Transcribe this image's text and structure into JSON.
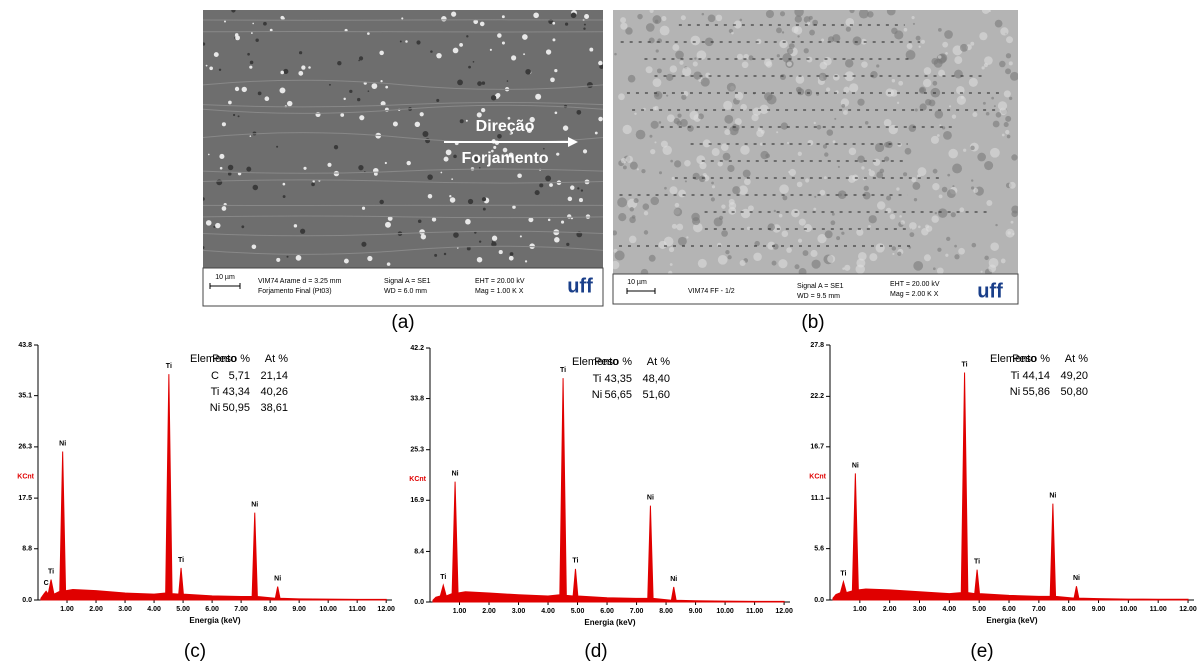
{
  "sem_images": [
    {
      "label": "(a)",
      "arrow_text": [
        "Direção",
        "Forjamento"
      ],
      "scale": "10 µm",
      "info": [
        "VIM74  Arame d = 3.25 mm",
        "Forjamento Final (Pt03)",
        "Signal A = SE1",
        "WD = 6.0 mm",
        "EHT = 20.00 kV",
        "Mag =  1.00 K X"
      ],
      "logo": "uff"
    },
    {
      "label": "(b)",
      "scale": "10 µm",
      "info": [
        "VIM74 FF - 1/2",
        "Signal A = SE1",
        "WD = 9.5 mm",
        "EHT = 20.00 kV",
        "Mag =  2.00 K X"
      ],
      "logo": "uff"
    }
  ],
  "chart_data": [
    {
      "type": "area",
      "label": "(c)",
      "x_label": "Energia (keV)",
      "y_label": "KCnt",
      "color": "#e00000",
      "xlim": [
        0,
        12.2
      ],
      "ylim": [
        0,
        43.8
      ],
      "xticks": [
        {
          "value": 1,
          "label": "1.00"
        },
        {
          "value": 2,
          "label": "2.00"
        },
        {
          "value": 3,
          "label": "3.00"
        },
        {
          "value": 4,
          "label": "4.00"
        },
        {
          "value": 5,
          "label": "5.00"
        },
        {
          "value": 6,
          "label": "6.00"
        },
        {
          "value": 7,
          "label": "7.00"
        },
        {
          "value": 8,
          "label": "8.00"
        },
        {
          "value": 9,
          "label": "9.00"
        },
        {
          "value": 10,
          "label": "10.00"
        },
        {
          "value": 11,
          "label": "11.00"
        },
        {
          "value": 12,
          "label": "12.00"
        }
      ],
      "yticks": [
        {
          "value": 0,
          "label": "0.0"
        },
        8.8,
        17.5,
        26.3,
        35.1,
        43.8
      ],
      "x": [
        0.1,
        0.2,
        0.28,
        0.35,
        0.45,
        0.55,
        0.75,
        0.85,
        0.95,
        1.2,
        2.0,
        3.0,
        4.0,
        4.4,
        4.51,
        4.62,
        4.85,
        4.93,
        5.01,
        6.0,
        7.0,
        7.38,
        7.47,
        7.56,
        8.18,
        8.26,
        8.34,
        9.0,
        10.0,
        11.0,
        12.0
      ],
      "values": [
        0.3,
        1.0,
        1.5,
        1.0,
        3.5,
        1.0,
        1.5,
        25.5,
        1.6,
        1.8,
        1.6,
        1.2,
        1.0,
        1.2,
        38.8,
        1.1,
        1.0,
        5.5,
        1.0,
        0.7,
        0.6,
        0.6,
        15.0,
        0.6,
        0.3,
        2.3,
        0.3,
        0.2,
        0.15,
        0.1,
        0.1
      ],
      "peak_labels": [
        {
          "text": "C",
          "x": 0.28
        },
        {
          "text": "Ti",
          "x": 0.45
        },
        {
          "text": "Ni",
          "x": 0.85
        },
        {
          "text": "Ti",
          "x": 4.51
        },
        {
          "text": "Ti",
          "x": 4.93
        },
        {
          "text": "Ni",
          "x": 7.47
        },
        {
          "text": "Ni",
          "x": 8.26
        }
      ],
      "table": {
        "header": [
          "Elemento",
          "Peso %",
          "At %"
        ],
        "rows": [
          [
            "C",
            "5,71",
            "21,14"
          ],
          [
            "Ti",
            "43,34",
            "40,26"
          ],
          [
            "Ni",
            "50,95",
            "38,61"
          ]
        ]
      }
    },
    {
      "type": "area",
      "label": "(d)",
      "x_label": "Energia (keV)",
      "y_label": "KCnt",
      "color": "#e00000",
      "xlim": [
        0,
        12.2
      ],
      "ylim": [
        0,
        42.2
      ],
      "xticks": [
        {
          "value": 1,
          "label": "1.00"
        },
        {
          "value": 2,
          "label": "2.00"
        },
        {
          "value": 3,
          "label": "3.00"
        },
        {
          "value": 4,
          "label": "4.00"
        },
        {
          "value": 5,
          "label": "5.00"
        },
        {
          "value": 6,
          "label": "6.00"
        },
        {
          "value": 7,
          "label": "7.00"
        },
        {
          "value": 8,
          "label": "8.00"
        },
        {
          "value": 9,
          "label": "9.00"
        },
        {
          "value": 10,
          "label": "10.00"
        },
        {
          "value": 11,
          "label": "11.00"
        },
        {
          "value": 12,
          "label": "12.00"
        }
      ],
      "yticks": [
        {
          "value": 0,
          "label": "0.0"
        },
        8.4,
        16.9,
        25.3,
        33.8,
        42.2
      ],
      "x": [
        0.1,
        0.2,
        0.35,
        0.45,
        0.55,
        0.75,
        0.85,
        0.95,
        1.2,
        2.0,
        3.0,
        4.0,
        4.4,
        4.51,
        4.62,
        4.85,
        4.93,
        5.01,
        6.0,
        7.0,
        7.38,
        7.47,
        7.56,
        8.18,
        8.26,
        8.34,
        9.0,
        10.0,
        11.0,
        12.0
      ],
      "values": [
        0.3,
        0.8,
        1.0,
        2.8,
        1.0,
        1.4,
        20.0,
        1.5,
        1.7,
        1.5,
        1.2,
        1.0,
        1.2,
        37.2,
        1.1,
        1.0,
        5.5,
        1.0,
        0.7,
        0.6,
        0.6,
        16.0,
        0.6,
        0.3,
        2.5,
        0.3,
        0.2,
        0.15,
        0.1,
        0.1
      ],
      "peak_labels": [
        {
          "text": "Ti",
          "x": 0.45
        },
        {
          "text": "Ni",
          "x": 0.85
        },
        {
          "text": "Ti",
          "x": 4.51
        },
        {
          "text": "Ti",
          "x": 4.93
        },
        {
          "text": "Ni",
          "x": 7.47
        },
        {
          "text": "Ni",
          "x": 8.26
        }
      ],
      "table": {
        "header": [
          "Elemento",
          "Peso %",
          "At %"
        ],
        "rows": [
          [
            "Ti",
            "43,35",
            "48,40"
          ],
          [
            "Ni",
            "56,65",
            "51,60"
          ]
        ]
      }
    },
    {
      "type": "area",
      "label": "(e)",
      "x_label": "Energia (keV)",
      "y_label": "KCnt",
      "color": "#e00000",
      "xlim": [
        0,
        12.2
      ],
      "ylim": [
        0,
        27.8
      ],
      "xticks": [
        {
          "value": 1,
          "label": "1.00"
        },
        {
          "value": 2,
          "label": "2.00"
        },
        {
          "value": 3,
          "label": "3.00"
        },
        {
          "value": 4,
          "label": "4.00"
        },
        {
          "value": 5,
          "label": "5.00"
        },
        {
          "value": 6,
          "label": "6.00"
        },
        {
          "value": 7,
          "label": "7.00"
        },
        {
          "value": 8,
          "label": "8.00"
        },
        {
          "value": 9,
          "label": "9.00"
        },
        {
          "value": 10,
          "label": "10.00"
        },
        {
          "value": 11,
          "label": "11.00"
        },
        {
          "value": 12,
          "label": "12.00"
        }
      ],
      "yticks": [
        {
          "value": 0,
          "label": "0.0"
        },
        5.6,
        11.1,
        16.7,
        22.2,
        27.8
      ],
      "x": [
        0.1,
        0.2,
        0.35,
        0.45,
        0.55,
        0.75,
        0.85,
        0.95,
        1.2,
        2.0,
        3.0,
        4.0,
        4.4,
        4.51,
        4.62,
        4.85,
        4.93,
        5.01,
        6.0,
        7.0,
        7.38,
        7.47,
        7.56,
        8.18,
        8.26,
        8.34,
        9.0,
        10.0,
        11.0,
        12.0
      ],
      "values": [
        0.2,
        0.6,
        0.8,
        2.0,
        0.8,
        1.0,
        13.8,
        1.1,
        1.2,
        1.1,
        0.9,
        0.7,
        0.8,
        24.8,
        0.8,
        0.7,
        3.3,
        0.7,
        0.5,
        0.4,
        0.4,
        10.5,
        0.4,
        0.2,
        1.5,
        0.2,
        0.15,
        0.1,
        0.08,
        0.08
      ],
      "peak_labels": [
        {
          "text": "Ti",
          "x": 0.45
        },
        {
          "text": "Ni",
          "x": 0.85
        },
        {
          "text": "Ti",
          "x": 4.51
        },
        {
          "text": "Ti",
          "x": 4.93
        },
        {
          "text": "Ni",
          "x": 7.47
        },
        {
          "text": "Ni",
          "x": 8.26
        }
      ],
      "table": {
        "header": [
          "Elemento",
          "Peso %",
          "At %"
        ],
        "rows": [
          [
            "Ti",
            "44,14",
            "49,20"
          ],
          [
            "Ni",
            "55,86",
            "50,80"
          ]
        ]
      }
    }
  ]
}
